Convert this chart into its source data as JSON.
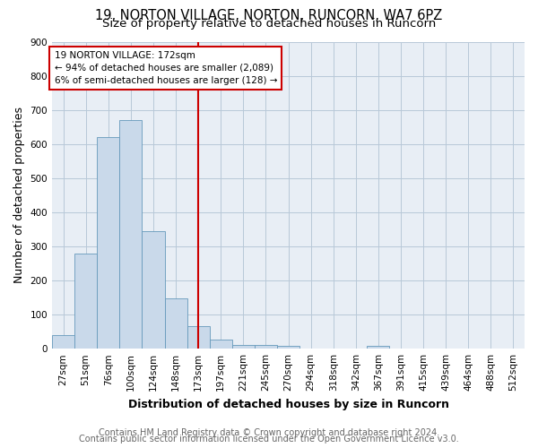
{
  "title_line1": "19, NORTON VILLAGE, NORTON, RUNCORN, WA7 6PZ",
  "title_line2": "Size of property relative to detached houses in Runcorn",
  "xlabel": "Distribution of detached houses by size in Runcorn",
  "ylabel": "Number of detached properties",
  "footer_line1": "Contains HM Land Registry data © Crown copyright and database right 2024.",
  "footer_line2": "Contains public sector information licensed under the Open Government Licence v3.0.",
  "categories": [
    "27sqm",
    "51sqm",
    "76sqm",
    "100sqm",
    "124sqm",
    "148sqm",
    "173sqm",
    "197sqm",
    "221sqm",
    "245sqm",
    "270sqm",
    "294sqm",
    "318sqm",
    "342sqm",
    "367sqm",
    "391sqm",
    "415sqm",
    "439sqm",
    "464sqm",
    "488sqm",
    "512sqm"
  ],
  "values": [
    40,
    278,
    620,
    670,
    345,
    148,
    65,
    28,
    12,
    10,
    8,
    0,
    0,
    0,
    8,
    0,
    0,
    0,
    0,
    0,
    0
  ],
  "bar_color": "#c9d9ea",
  "bar_edge_color": "#6699bb",
  "vline_x": 6,
  "vline_color": "#cc0000",
  "annotation_text": "19 NORTON VILLAGE: 172sqm\n← 94% of detached houses are smaller (2,089)\n6% of semi-detached houses are larger (128) →",
  "annotation_box_color": "#ffffff",
  "annotation_box_edge": "#cc0000",
  "ylim": [
    0,
    900
  ],
  "yticks": [
    0,
    100,
    200,
    300,
    400,
    500,
    600,
    700,
    800,
    900
  ],
  "grid_color": "#b8c8d8",
  "background_color": "#e8eef5",
  "title1_fontsize": 10.5,
  "title2_fontsize": 9.5,
  "axis_label_fontsize": 9,
  "tick_fontsize": 7.5,
  "footer_fontsize": 7,
  "annotation_fontsize": 7.5
}
